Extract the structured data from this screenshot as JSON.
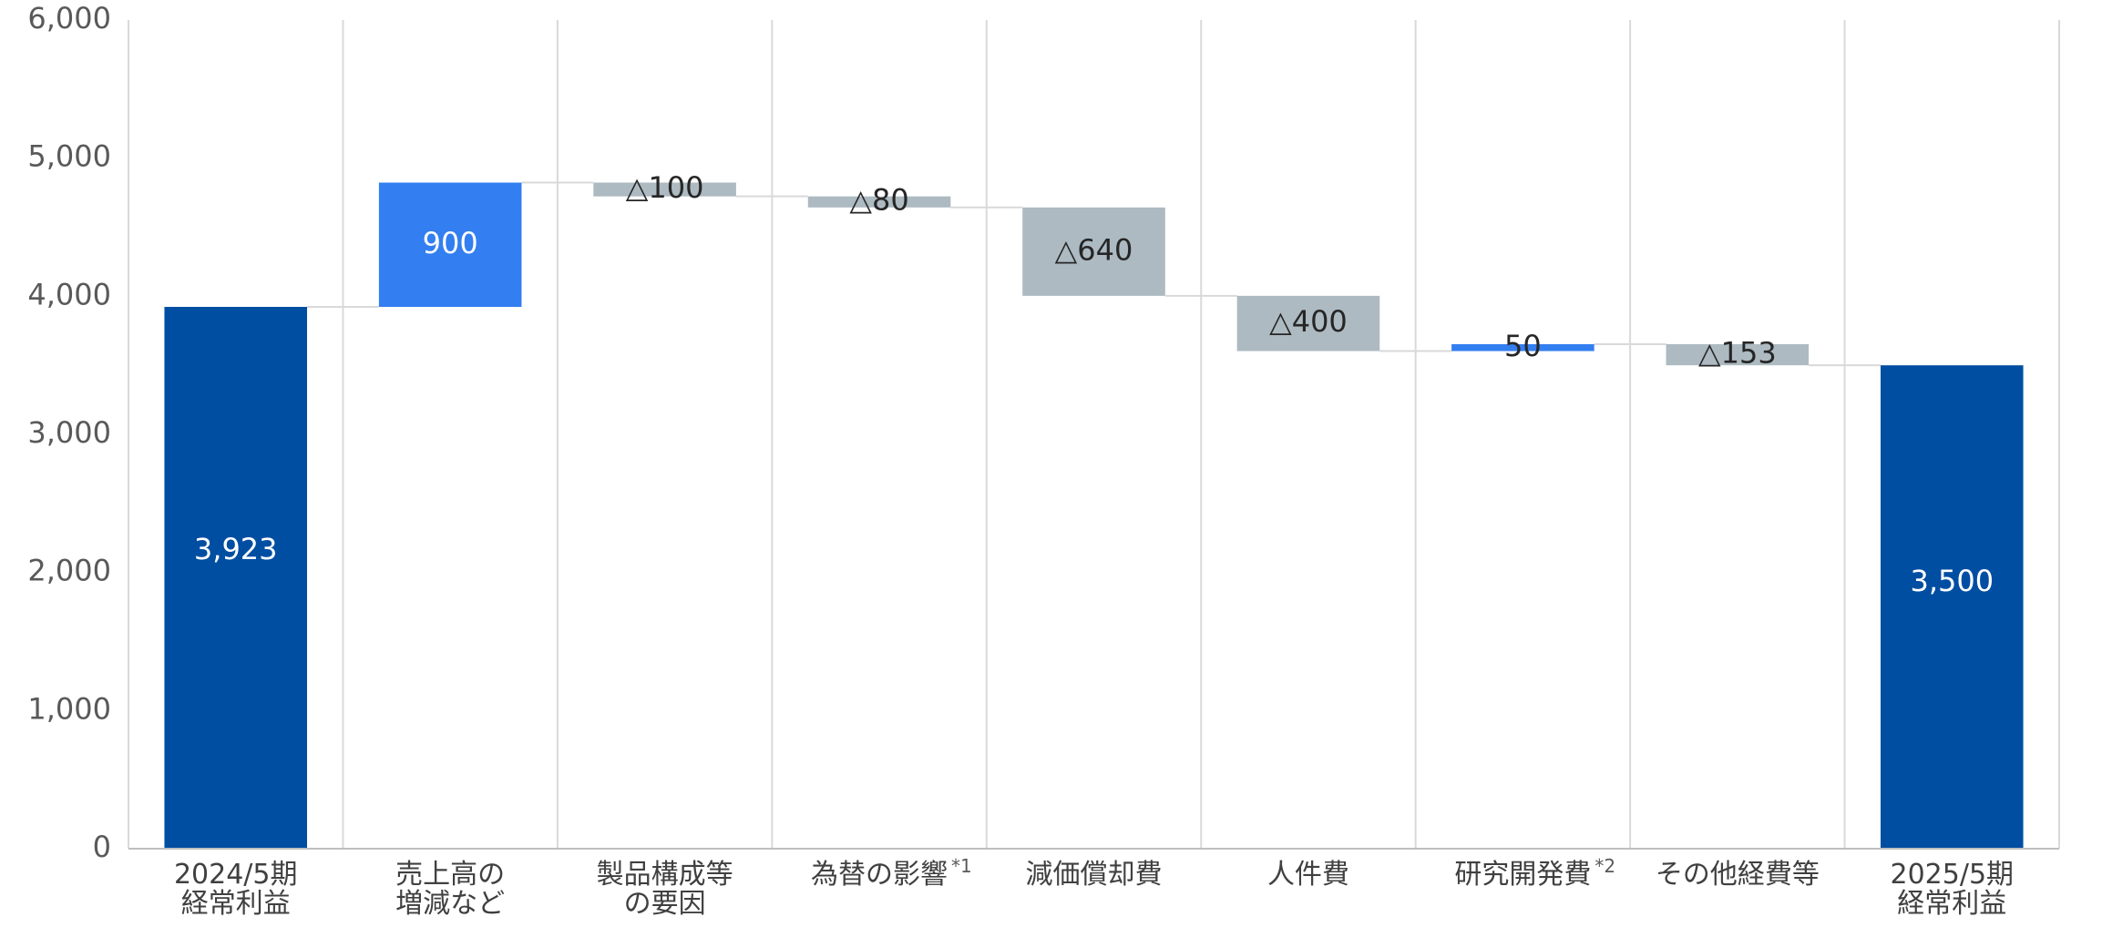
{
  "chart_data": {
    "type": "bar",
    "subtype": "waterfall",
    "title": "",
    "xlabel": "",
    "ylabel": "",
    "ylim": [
      0,
      6000
    ],
    "yticks": [
      0,
      1000,
      2000,
      3000,
      4000,
      5000,
      6000
    ],
    "ytick_labels": [
      "0",
      "1,000",
      "2,000",
      "3,000",
      "4,000",
      "5,000",
      "6,000"
    ],
    "grid": "vertical category separators",
    "legend": "none",
    "categories": [
      {
        "lines": [
          "2024/5期",
          "経常利益"
        ],
        "sup": ""
      },
      {
        "lines": [
          "売上高の",
          "増減など"
        ],
        "sup": ""
      },
      {
        "lines": [
          "製品構成等",
          "の要因"
        ],
        "sup": ""
      },
      {
        "lines": [
          "為替の影響"
        ],
        "sup": "*1"
      },
      {
        "lines": [
          "減価償却費"
        ],
        "sup": ""
      },
      {
        "lines": [
          "人件費"
        ],
        "sup": ""
      },
      {
        "lines": [
          "研究開発費"
        ],
        "sup": "*2"
      },
      {
        "lines": [
          "その他経費等"
        ],
        "sup": ""
      },
      {
        "lines": [
          "2025/5期",
          "経常利益"
        ],
        "sup": ""
      }
    ],
    "bars": [
      {
        "kind": "total",
        "start": 0,
        "end": 3923,
        "label": "3,923"
      },
      {
        "kind": "increase",
        "start": 3923,
        "end": 4823,
        "label": "900"
      },
      {
        "kind": "decrease",
        "start": 4823,
        "end": 4723,
        "label": "△100"
      },
      {
        "kind": "decrease",
        "start": 4723,
        "end": 4643,
        "label": "△80"
      },
      {
        "kind": "decrease",
        "start": 4643,
        "end": 4003,
        "label": "△640"
      },
      {
        "kind": "decrease",
        "start": 4003,
        "end": 3603,
        "label": "△400"
      },
      {
        "kind": "increase",
        "start": 3603,
        "end": 3653,
        "label": "50"
      },
      {
        "kind": "decrease",
        "start": 3653,
        "end": 3500,
        "label": "△153"
      },
      {
        "kind": "total",
        "start": 0,
        "end": 3500,
        "label": "3,500"
      }
    ],
    "colors": {
      "total": "#004ea2",
      "increase": "#337ef0",
      "decrease": "#adbac1",
      "connector": "#d9d9d9",
      "separator": "#d9d9d9",
      "axis": "#bfbfbf"
    }
  }
}
